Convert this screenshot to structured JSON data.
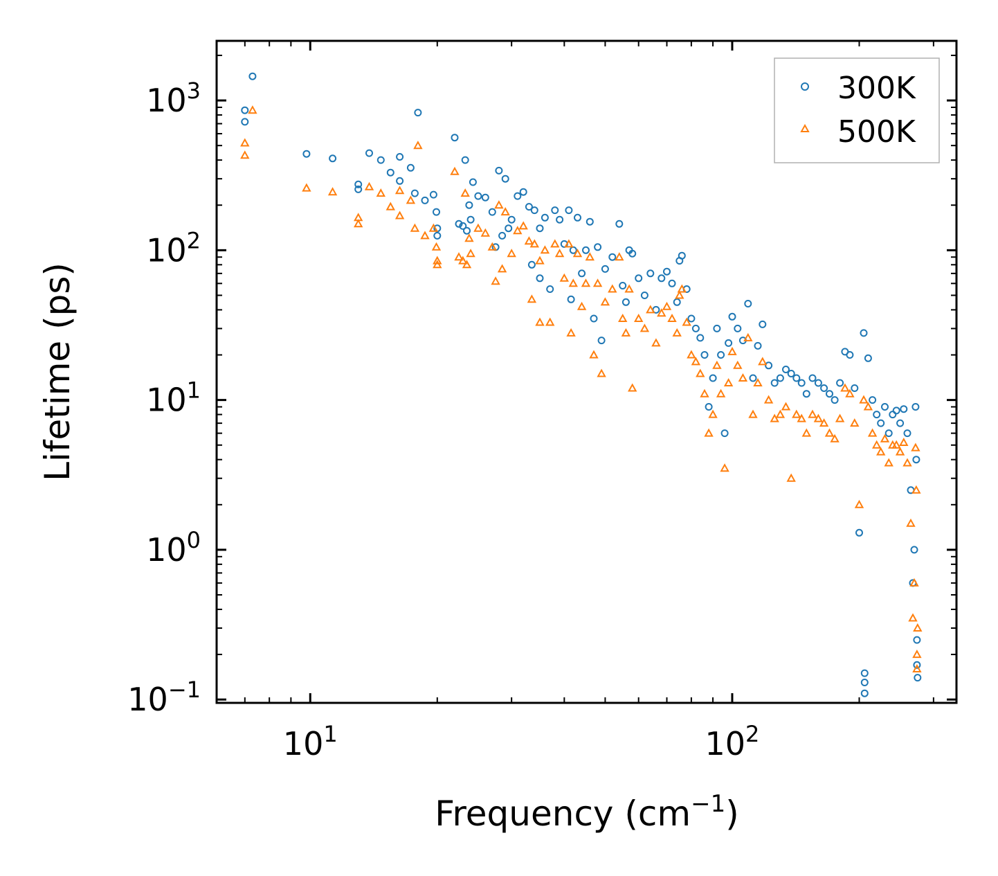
{
  "chart_data": {
    "type": "scatter",
    "title": "",
    "xlabel": "Frequency (cm",
    "xlabel_sup": "−1",
    "xlabel_tail": ")",
    "ylabel": "Lifetime (ps)",
    "xscale": "log",
    "yscale": "log",
    "xlim": [
      6.0,
      340.0
    ],
    "ylim": [
      0.095,
      2500
    ],
    "x_ticks": [
      {
        "value": 10,
        "base": "10",
        "exp": "1"
      },
      {
        "value": 100,
        "base": "10",
        "exp": "2"
      }
    ],
    "y_ticks": [
      {
        "value": 0.1,
        "base": "10",
        "exp": "−1"
      },
      {
        "value": 1,
        "base": "10",
        "exp": "0"
      },
      {
        "value": 10,
        "base": "10",
        "exp": "1"
      },
      {
        "value": 100,
        "base": "10",
        "exp": "2"
      },
      {
        "value": 1000,
        "base": "10",
        "exp": "3"
      }
    ],
    "legend_position": "top-right",
    "series": [
      {
        "name": "300K",
        "marker": "circle",
        "color": "#1f77b4",
        "points": [
          [
            7.0,
            860
          ],
          [
            7.0,
            720
          ],
          [
            7.3,
            1450
          ],
          [
            9.8,
            440
          ],
          [
            11.3,
            410
          ],
          [
            13.0,
            275
          ],
          [
            13.0,
            255
          ],
          [
            13.8,
            445
          ],
          [
            14.7,
            400
          ],
          [
            15.5,
            330
          ],
          [
            16.3,
            420
          ],
          [
            16.3,
            290
          ],
          [
            17.3,
            355
          ],
          [
            17.7,
            240
          ],
          [
            18.0,
            830
          ],
          [
            18.7,
            215
          ],
          [
            19.6,
            235
          ],
          [
            19.9,
            180
          ],
          [
            20.0,
            140
          ],
          [
            20.0,
            125
          ],
          [
            22.0,
            565
          ],
          [
            22.5,
            150
          ],
          [
            23.0,
            145
          ],
          [
            23.3,
            400
          ],
          [
            23.5,
            135
          ],
          [
            23.8,
            200
          ],
          [
            24.0,
            160
          ],
          [
            24.3,
            285
          ],
          [
            25.0,
            230
          ],
          [
            26.0,
            225
          ],
          [
            27.0,
            180
          ],
          [
            27.5,
            105
          ],
          [
            28.0,
            340
          ],
          [
            28.5,
            125
          ],
          [
            29.0,
            300
          ],
          [
            29.5,
            140
          ],
          [
            30.0,
            160
          ],
          [
            31.0,
            230
          ],
          [
            32.0,
            245
          ],
          [
            33.0,
            195
          ],
          [
            33.5,
            80
          ],
          [
            34.0,
            185
          ],
          [
            35.0,
            140
          ],
          [
            35.0,
            65
          ],
          [
            36.0,
            165
          ],
          [
            37.0,
            55
          ],
          [
            38.0,
            185
          ],
          [
            39.0,
            160
          ],
          [
            40.0,
            110
          ],
          [
            41.0,
            185
          ],
          [
            41.5,
            47
          ],
          [
            42.0,
            100
          ],
          [
            43.0,
            165
          ],
          [
            44.0,
            70
          ],
          [
            45.0,
            100
          ],
          [
            46.0,
            155
          ],
          [
            47.0,
            35
          ],
          [
            48.0,
            105
          ],
          [
            49.0,
            25
          ],
          [
            50.0,
            75
          ],
          [
            52.0,
            90
          ],
          [
            54.0,
            150
          ],
          [
            55.0,
            58
          ],
          [
            56.0,
            45
          ],
          [
            57.0,
            100
          ],
          [
            58.0,
            95
          ],
          [
            60.0,
            65
          ],
          [
            62.0,
            50
          ],
          [
            64.0,
            70
          ],
          [
            66.0,
            40
          ],
          [
            68.0,
            65
          ],
          [
            70.0,
            72
          ],
          [
            72.0,
            60
          ],
          [
            74.0,
            45
          ],
          [
            75.0,
            85
          ],
          [
            76.0,
            92
          ],
          [
            78.0,
            55
          ],
          [
            80.0,
            35
          ],
          [
            82.0,
            30
          ],
          [
            84.0,
            26
          ],
          [
            86.0,
            20
          ],
          [
            88.0,
            9
          ],
          [
            90.0,
            14
          ],
          [
            92.0,
            30
          ],
          [
            94.0,
            20
          ],
          [
            96.0,
            6
          ],
          [
            98.0,
            24
          ],
          [
            100.0,
            36
          ],
          [
            103.0,
            30
          ],
          [
            106.0,
            25
          ],
          [
            109.0,
            44
          ],
          [
            112.0,
            14
          ],
          [
            115.0,
            23
          ],
          [
            118.0,
            32
          ],
          [
            122.0,
            17
          ],
          [
            126.0,
            13
          ],
          [
            130.0,
            14
          ],
          [
            134.0,
            16
          ],
          [
            138.0,
            15
          ],
          [
            142.0,
            14
          ],
          [
            146.0,
            13
          ],
          [
            150.0,
            11
          ],
          [
            155.0,
            14
          ],
          [
            160.0,
            13
          ],
          [
            165.0,
            12
          ],
          [
            170.0,
            11
          ],
          [
            175.0,
            10
          ],
          [
            180.0,
            13
          ],
          [
            185.0,
            21
          ],
          [
            190.0,
            20
          ],
          [
            195.0,
            12
          ],
          [
            200.0,
            1.3
          ],
          [
            205.0,
            28
          ],
          [
            210.0,
            19
          ],
          [
            215.0,
            10
          ],
          [
            220.0,
            8
          ],
          [
            225.0,
            7
          ],
          [
            230.0,
            9
          ],
          [
            235.0,
            6
          ],
          [
            240.0,
            8
          ],
          [
            245.0,
            8.5
          ],
          [
            250.0,
            7
          ],
          [
            255.0,
            8.7
          ],
          [
            260.0,
            6
          ],
          [
            265.0,
            2.5
          ],
          [
            268.0,
            0.6
          ],
          [
            270.0,
            1.0
          ],
          [
            272.0,
            9
          ],
          [
            273.0,
            4.0
          ],
          [
            274.0,
            0.25
          ],
          [
            274.0,
            0.17
          ],
          [
            275.0,
            0.14
          ],
          [
            206.0,
            0.15
          ],
          [
            206.0,
            0.13
          ],
          [
            206.0,
            0.11
          ]
        ]
      },
      {
        "name": "500K",
        "marker": "triangle",
        "color": "#ff7f0e",
        "points": [
          [
            7.0,
            520
          ],
          [
            7.0,
            430
          ],
          [
            7.3,
            860
          ],
          [
            9.8,
            260
          ],
          [
            11.3,
            245
          ],
          [
            13.0,
            165
          ],
          [
            13.0,
            150
          ],
          [
            13.8,
            265
          ],
          [
            14.7,
            240
          ],
          [
            15.5,
            195
          ],
          [
            16.3,
            250
          ],
          [
            16.3,
            170
          ],
          [
            17.3,
            215
          ],
          [
            17.7,
            140
          ],
          [
            18.0,
            500
          ],
          [
            18.7,
            125
          ],
          [
            19.6,
            140
          ],
          [
            19.9,
            105
          ],
          [
            20.0,
            85
          ],
          [
            20.0,
            80
          ],
          [
            22.0,
            335
          ],
          [
            22.5,
            90
          ],
          [
            23.0,
            85
          ],
          [
            23.3,
            240
          ],
          [
            23.5,
            80
          ],
          [
            23.8,
            120
          ],
          [
            24.0,
            95
          ],
          [
            25.0,
            140
          ],
          [
            26.0,
            130
          ],
          [
            27.0,
            105
          ],
          [
            27.5,
            62
          ],
          [
            28.0,
            200
          ],
          [
            28.5,
            75
          ],
          [
            29.0,
            180
          ],
          [
            30.0,
            95
          ],
          [
            31.0,
            135
          ],
          [
            32.0,
            145
          ],
          [
            33.0,
            115
          ],
          [
            33.5,
            47
          ],
          [
            34.0,
            110
          ],
          [
            35.0,
            85
          ],
          [
            35.0,
            33
          ],
          [
            36.0,
            100
          ],
          [
            37.0,
            33
          ],
          [
            38.0,
            110
          ],
          [
            39.0,
            95
          ],
          [
            40.0,
            65
          ],
          [
            41.0,
            110
          ],
          [
            41.5,
            28
          ],
          [
            42.0,
            60
          ],
          [
            43.0,
            95
          ],
          [
            44.0,
            42
          ],
          [
            45.0,
            60
          ],
          [
            46.0,
            90
          ],
          [
            47.0,
            20
          ],
          [
            48.0,
            60
          ],
          [
            49.0,
            15
          ],
          [
            50.0,
            45
          ],
          [
            52.0,
            55
          ],
          [
            54.0,
            90
          ],
          [
            55.0,
            35
          ],
          [
            56.0,
            28
          ],
          [
            57.0,
            55
          ],
          [
            58.0,
            12
          ],
          [
            60.0,
            35
          ],
          [
            62.0,
            30
          ],
          [
            64.0,
            40
          ],
          [
            66.0,
            24
          ],
          [
            68.0,
            38
          ],
          [
            70.0,
            42
          ],
          [
            72.0,
            35
          ],
          [
            74.0,
            28
          ],
          [
            75.0,
            50
          ],
          [
            76.0,
            55
          ],
          [
            78.0,
            33
          ],
          [
            80.0,
            20
          ],
          [
            82.0,
            18
          ],
          [
            84.0,
            15
          ],
          [
            86.0,
            11
          ],
          [
            88.0,
            6
          ],
          [
            90.0,
            8
          ],
          [
            92.0,
            17
          ],
          [
            94.0,
            11
          ],
          [
            96.0,
            3.5
          ],
          [
            98.0,
            13
          ],
          [
            100.0,
            21
          ],
          [
            103.0,
            17
          ],
          [
            106.0,
            14
          ],
          [
            109.0,
            26
          ],
          [
            112.0,
            8
          ],
          [
            115.0,
            13
          ],
          [
            118.0,
            18
          ],
          [
            122.0,
            10
          ],
          [
            126.0,
            7.5
          ],
          [
            130.0,
            8
          ],
          [
            134.0,
            9
          ],
          [
            138.0,
            3.0
          ],
          [
            142.0,
            8
          ],
          [
            146.0,
            7.5
          ],
          [
            150.0,
            6
          ],
          [
            155.0,
            8
          ],
          [
            160.0,
            7.5
          ],
          [
            165.0,
            7
          ],
          [
            170.0,
            6
          ],
          [
            175.0,
            5.5
          ],
          [
            180.0,
            7.5
          ],
          [
            185.0,
            12
          ],
          [
            190.0,
            11
          ],
          [
            195.0,
            7
          ],
          [
            200.0,
            2.0
          ],
          [
            205.0,
            10
          ],
          [
            210.0,
            9
          ],
          [
            215.0,
            6
          ],
          [
            220.0,
            5
          ],
          [
            225.0,
            4.5
          ],
          [
            230.0,
            5.5
          ],
          [
            235.0,
            3.8
          ],
          [
            240.0,
            5
          ],
          [
            245.0,
            5
          ],
          [
            250.0,
            4.5
          ],
          [
            255.0,
            5.2
          ],
          [
            260.0,
            3.8
          ],
          [
            265.0,
            1.5
          ],
          [
            268.0,
            0.35
          ],
          [
            270.0,
            0.6
          ],
          [
            272.0,
            4.8
          ],
          [
            273.0,
            2.5
          ],
          [
            274.0,
            0.2
          ],
          [
            274.0,
            0.16
          ],
          [
            275.0,
            0.3
          ]
        ]
      }
    ]
  }
}
